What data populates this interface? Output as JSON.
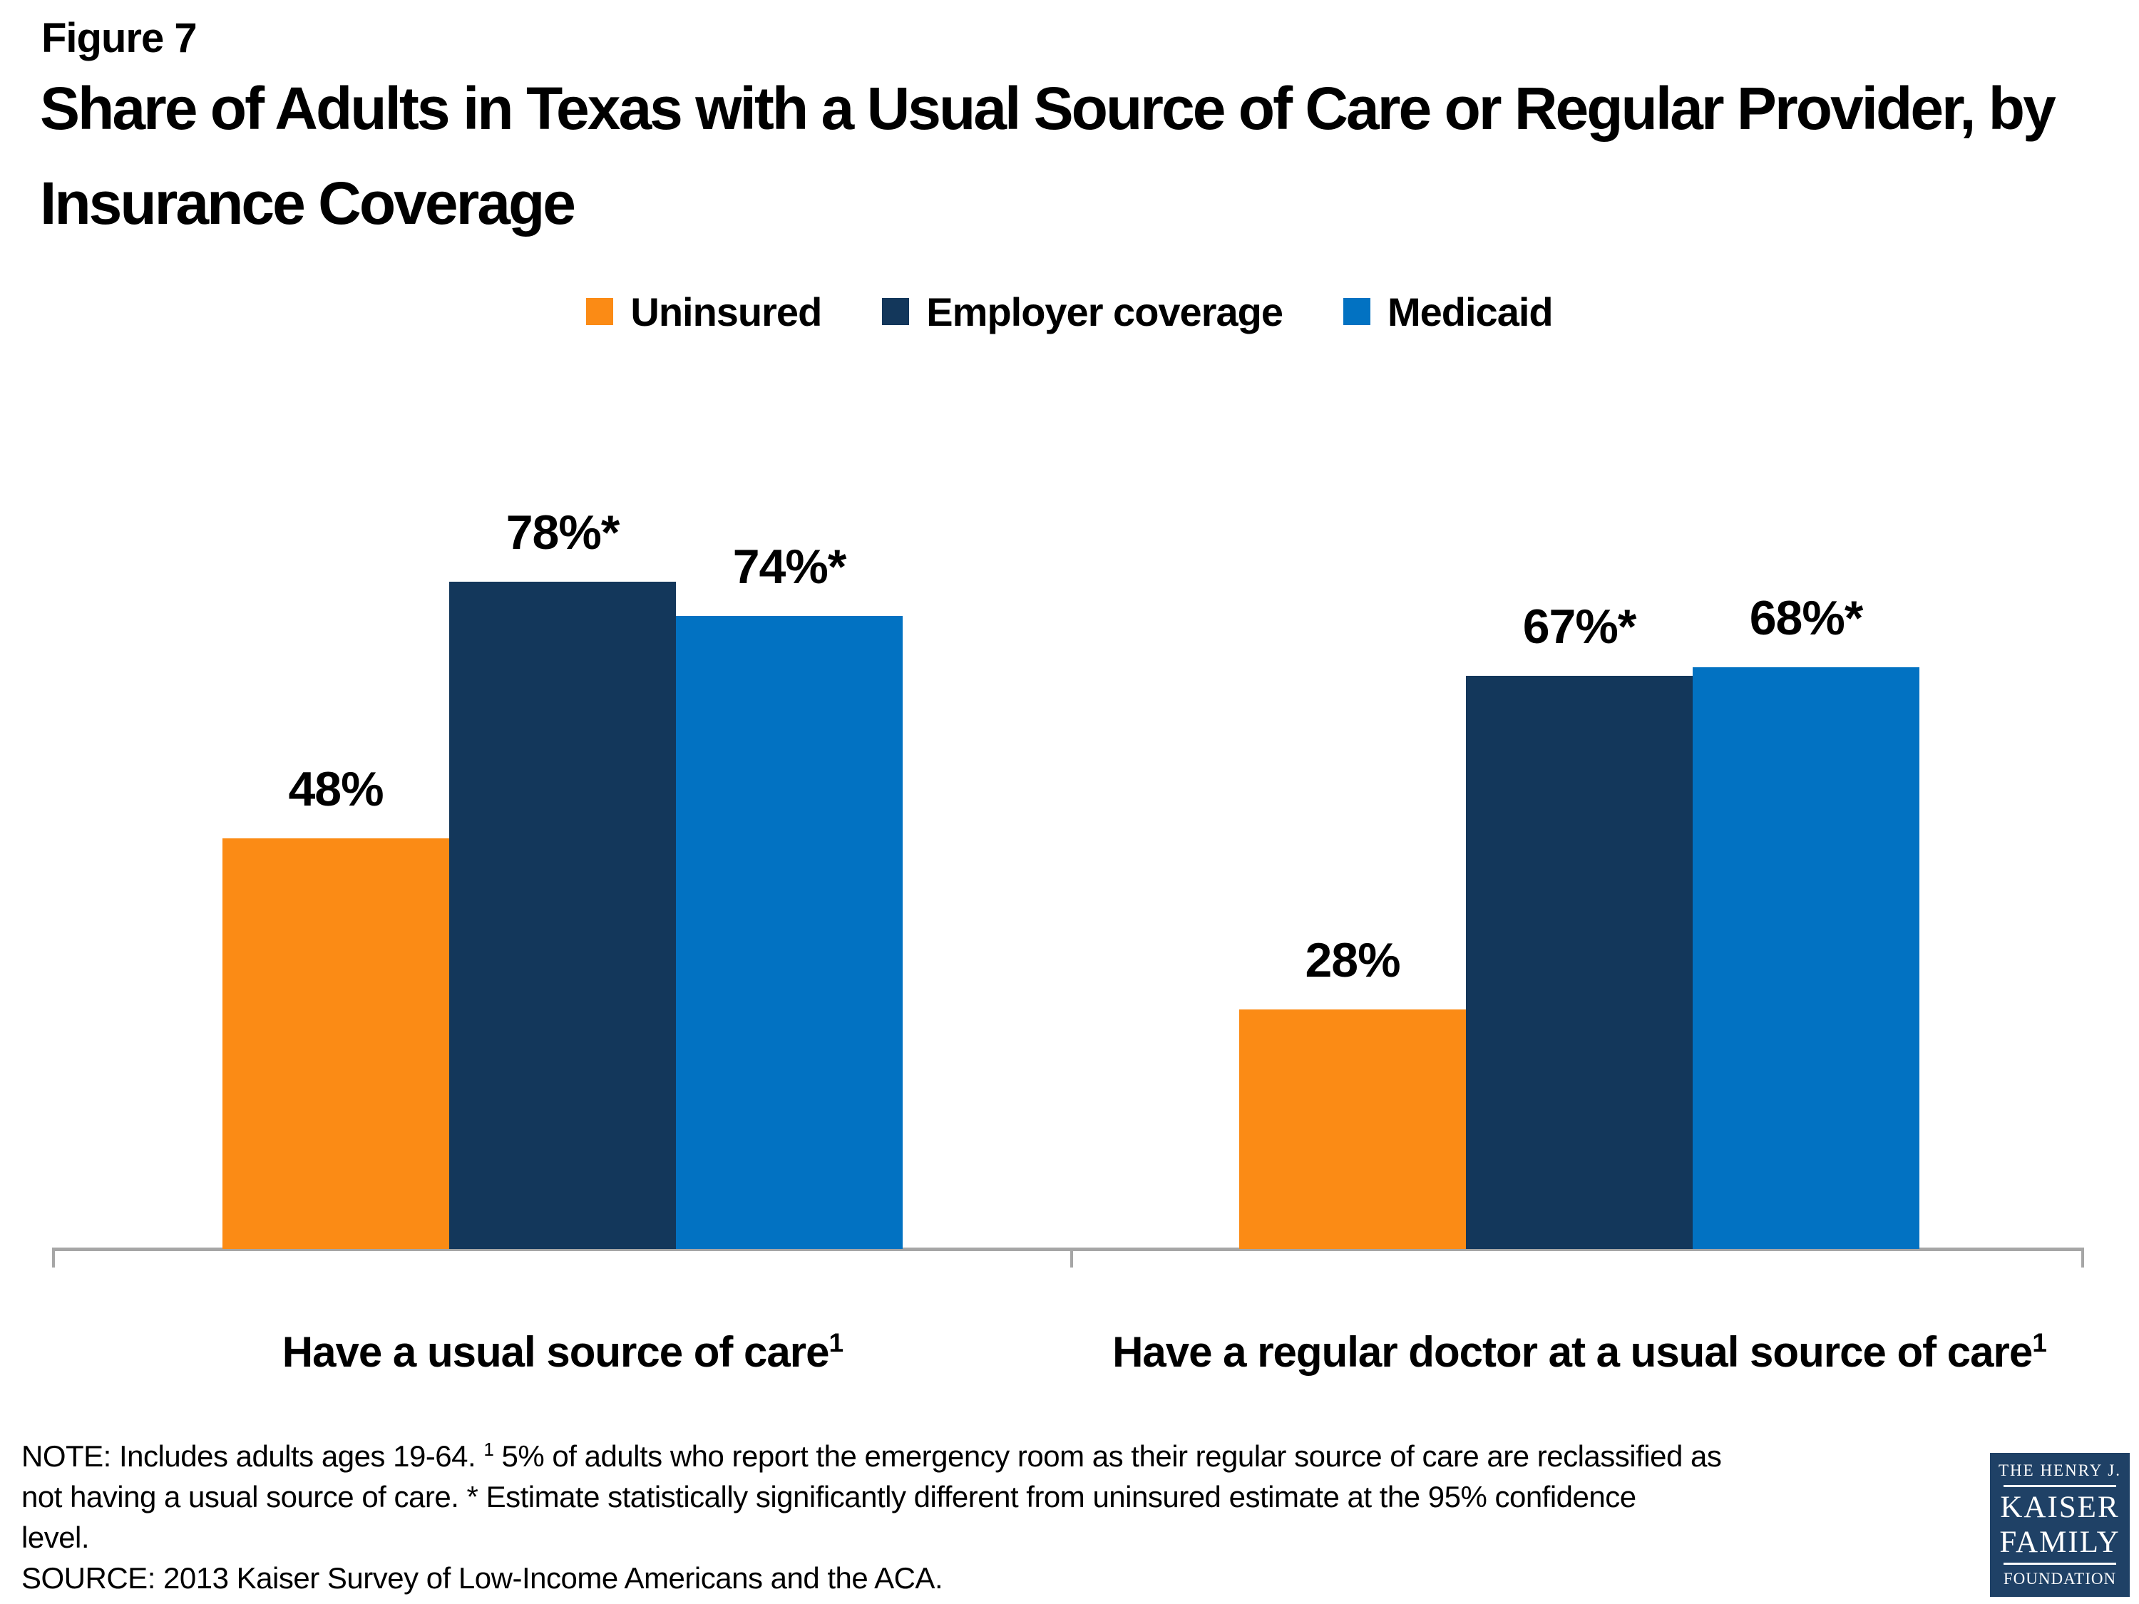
{
  "figure_label": "Figure 7",
  "title": "Share of Adults in Texas with a Usual Source of Care or Regular Provider, by Insurance Coverage",
  "chart_data": {
    "type": "bar",
    "categories": [
      "Have a usual source of care",
      "Have a regular doctor at a usual source of care"
    ],
    "category_footnote_marker": "1",
    "series": [
      {
        "name": "Uninsured",
        "color": "#FB8B15",
        "values": [
          48,
          28
        ],
        "data_labels": [
          "48%",
          "28%"
        ]
      },
      {
        "name": "Employer coverage",
        "color": "#13375B",
        "values": [
          78,
          67
        ],
        "data_labels": [
          "78%*",
          "67%*"
        ]
      },
      {
        "name": "Medicaid",
        "color": "#0272C2",
        "values": [
          74,
          68
        ],
        "data_labels": [
          "74%*",
          "68%*"
        ]
      }
    ],
    "ylim": [
      0,
      100
    ],
    "y_axis_visible": false,
    "grid": false,
    "legend_position": "top",
    "axis_color": "#A6A6A6"
  },
  "note": {
    "line1_pre": "NOTE: Includes adults ages 19-64. ",
    "line1_sup": "1",
    "line1_post": " 5% of adults who report the emergency room as their regular source of care are reclassified as",
    "line2": "not having a usual source of care. * Estimate statistically significantly different from uninsured estimate at the 95% confidence",
    "line3": "level.",
    "source": "SOURCE: 2013 Kaiser Survey of Low-Income Americans and the ACA."
  },
  "logo": {
    "top": "THE HENRY J.",
    "name1": "KAISER",
    "name2": "FAMILY",
    "bottom": "FOUNDATION",
    "bg_color": "#1F4166"
  }
}
